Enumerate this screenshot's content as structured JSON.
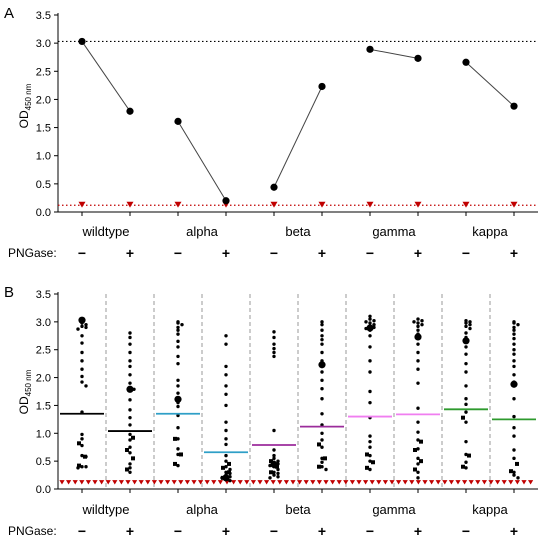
{
  "panels": [
    {
      "letter": "A",
      "ylabel_main": "OD",
      "ylabel_sub": "450 nm",
      "ylim": [
        0,
        3.5
      ],
      "yticks": [
        "0.0",
        "0.5",
        "1.0",
        "1.5",
        "2.0",
        "2.5",
        "3.0",
        "3.5"
      ],
      "ytick_values": [
        0,
        0.5,
        1.0,
        1.5,
        2.0,
        2.5,
        3.0,
        3.5
      ],
      "variants": [
        "wildtype",
        "alpha",
        "beta",
        "gamma",
        "kappa"
      ],
      "row_label": "PNGase:",
      "signs": [
        "−",
        "+"
      ]
    },
    {
      "letter": "B",
      "ylabel_main": "OD",
      "ylabel_sub": "450 nm",
      "ylim": [
        0,
        3.5
      ],
      "yticks": [
        "0.0",
        "0.5",
        "1.0",
        "1.5",
        "2.0",
        "2.5",
        "3.0",
        "3.5"
      ],
      "ytick_values": [
        0,
        0.5,
        1.0,
        1.5,
        2.0,
        2.5,
        3.0,
        3.5
      ],
      "variants": [
        "wildtype",
        "alpha",
        "beta",
        "gamma",
        "kappa"
      ],
      "row_label": "PNGase:",
      "signs": [
        "−",
        "+"
      ]
    }
  ],
  "chart_data": [
    {
      "type": "line",
      "panel": "A",
      "ylim": [
        0,
        3.5
      ],
      "reference_lines": [
        {
          "y": 3.03,
          "color": "#000000",
          "style": "dotted"
        },
        {
          "y": 0.12,
          "color": "#c00000",
          "style": "dotted"
        }
      ],
      "pairs": [
        {
          "variant": "wildtype",
          "minus": 3.03,
          "plus": 1.79
        },
        {
          "variant": "alpha",
          "minus": 1.61,
          "plus": 0.2
        },
        {
          "variant": "beta",
          "minus": 0.44,
          "plus": 2.23
        },
        {
          "variant": "gamma",
          "minus": 2.89,
          "plus": 2.73
        },
        {
          "variant": "kappa",
          "minus": 2.66,
          "plus": 1.88
        }
      ],
      "baseline_triangles": {
        "color": "#c00000",
        "minus": 0.13,
        "plus": 0.13
      }
    },
    {
      "type": "scatter",
      "panel": "B",
      "ylim": [
        0,
        3.5
      ],
      "baseline_triangles": {
        "color": "#c00000",
        "y": 0.12
      },
      "groups": [
        {
          "variant": "wildtype",
          "pngase": "−",
          "mean": 1.35,
          "mean_color": "#000000",
          "big": 3.03,
          "circles": [
            3.02,
            2.98,
            2.95,
            2.92,
            2.9,
            2.87,
            2.75,
            2.62,
            2.45,
            2.3,
            2.15,
            2.02,
            1.92,
            1.85,
            1.38,
            0.98,
            0.9,
            0.78,
            0.6,
            0.58,
            0.4,
            0.4,
            0.38
          ],
          "squares": [
            0.42,
            0.58,
            0.82
          ]
        },
        {
          "variant": "wildtype",
          "pngase": "+",
          "mean": 1.04,
          "mean_color": "#000000",
          "big": 1.79,
          "circles": [
            2.8,
            2.72,
            2.6,
            2.45,
            2.3,
            2.2,
            2.05,
            1.9,
            1.8,
            1.79,
            1.6,
            1.42,
            1.28,
            1.15,
            0.98,
            0.88,
            0.75,
            0.65,
            0.45,
            0.38,
            0.3
          ],
          "squares": [
            0.35,
            0.55,
            0.7,
            0.92
          ]
        },
        {
          "variant": "alpha",
          "pngase": "−",
          "mean": 1.35,
          "mean_color": "#2e9fc7",
          "big": 1.61,
          "circles": [
            3.0,
            2.98,
            2.95,
            2.9,
            2.85,
            2.78,
            2.65,
            2.55,
            2.38,
            2.25,
            1.95,
            1.85,
            1.72,
            1.55,
            1.48,
            1.32,
            1.1,
            0.9,
            0.72,
            0.62,
            0.42
          ],
          "squares": [
            0.45,
            0.62,
            0.9
          ]
        },
        {
          "variant": "alpha",
          "pngase": "+",
          "mean": 0.66,
          "mean_color": "#2e9fc7",
          "big": 0.2,
          "circles": [
            2.75,
            2.6,
            2.2,
            2.05,
            1.85,
            1.7,
            1.5,
            1.2,
            1.05,
            0.9,
            0.8,
            0.6,
            0.5,
            0.4,
            0.35,
            0.3,
            0.28,
            0.25,
            0.22,
            0.2,
            0.18,
            0.15
          ],
          "squares": [
            0.2,
            0.3,
            0.38,
            0.45
          ]
        },
        {
          "variant": "beta",
          "pngase": "−",
          "mean": 0.79,
          "mean_color": "#9b2c9b",
          "big": 0.44,
          "circles": [
            2.82,
            2.72,
            2.6,
            2.52,
            2.45,
            2.38,
            1.05,
            0.7,
            0.6,
            0.55,
            0.5,
            0.48,
            0.45,
            0.42,
            0.4,
            0.35,
            0.3,
            0.28,
            0.25,
            0.22,
            0.2
          ],
          "squares": [
            0.3,
            0.4,
            0.5
          ]
        },
        {
          "variant": "beta",
          "pngase": "+",
          "mean": 1.12,
          "mean_color": "#9b2c9b",
          "big": 2.23,
          "circles": [
            3.0,
            2.95,
            2.85,
            2.75,
            2.68,
            2.6,
            2.45,
            2.3,
            2.1,
            1.95,
            1.8,
            1.62,
            1.35,
            1.15,
            1.0,
            0.88,
            0.75,
            0.55,
            0.48,
            0.4,
            0.35
          ],
          "squares": [
            0.4,
            0.55,
            0.8
          ]
        },
        {
          "variant": "gamma",
          "pngase": "−",
          "mean": 1.3,
          "mean_color": "#f07ef0",
          "big": 2.89,
          "circles": [
            3.1,
            3.05,
            3.02,
            3.0,
            2.98,
            2.95,
            2.92,
            2.9,
            2.88,
            2.85,
            2.75,
            2.55,
            2.3,
            2.1,
            1.75,
            1.55,
            1.28,
            0.95,
            0.85,
            0.75,
            0.6,
            0.5,
            0.35
          ],
          "squares": [
            0.38,
            0.48,
            0.62
          ]
        },
        {
          "variant": "gamma",
          "pngase": "+",
          "mean": 1.34,
          "mean_color": "#f07ef0",
          "big": 2.73,
          "circles": [
            3.05,
            3.02,
            3.0,
            2.98,
            2.95,
            2.92,
            2.85,
            2.78,
            2.7,
            2.6,
            2.45,
            2.3,
            2.15,
            1.9,
            1.45,
            1.2,
            1.02,
            0.88,
            0.72,
            0.55,
            0.45,
            0.3,
            0.2
          ],
          "squares": [
            0.35,
            0.5,
            0.7,
            0.85
          ]
        },
        {
          "variant": "kappa",
          "pngase": "−",
          "mean": 1.43,
          "mean_color": "#2e9a2e",
          "big": 2.66,
          "circles": [
            3.02,
            3.0,
            2.98,
            2.95,
            2.92,
            2.88,
            2.8,
            2.72,
            2.65,
            2.55,
            2.42,
            2.25,
            2.1,
            1.85,
            1.62,
            1.52,
            1.38,
            1.2,
            0.85,
            0.62,
            0.48,
            0.38
          ],
          "squares": [
            0.4,
            0.6,
            1.28
          ]
        },
        {
          "variant": "kappa",
          "pngase": "+",
          "mean": 1.25,
          "mean_color": "#2e9a2e",
          "big": 1.88,
          "circles": [
            3.0,
            2.98,
            2.95,
            2.9,
            2.85,
            2.78,
            2.7,
            2.6,
            2.5,
            2.42,
            2.3,
            2.2,
            2.05,
            1.92,
            1.62,
            1.3,
            1.1,
            0.95,
            0.7,
            0.55,
            0.3,
            0.25,
            0.2
          ],
          "squares": [
            0.32,
            0.45
          ]
        }
      ]
    }
  ]
}
